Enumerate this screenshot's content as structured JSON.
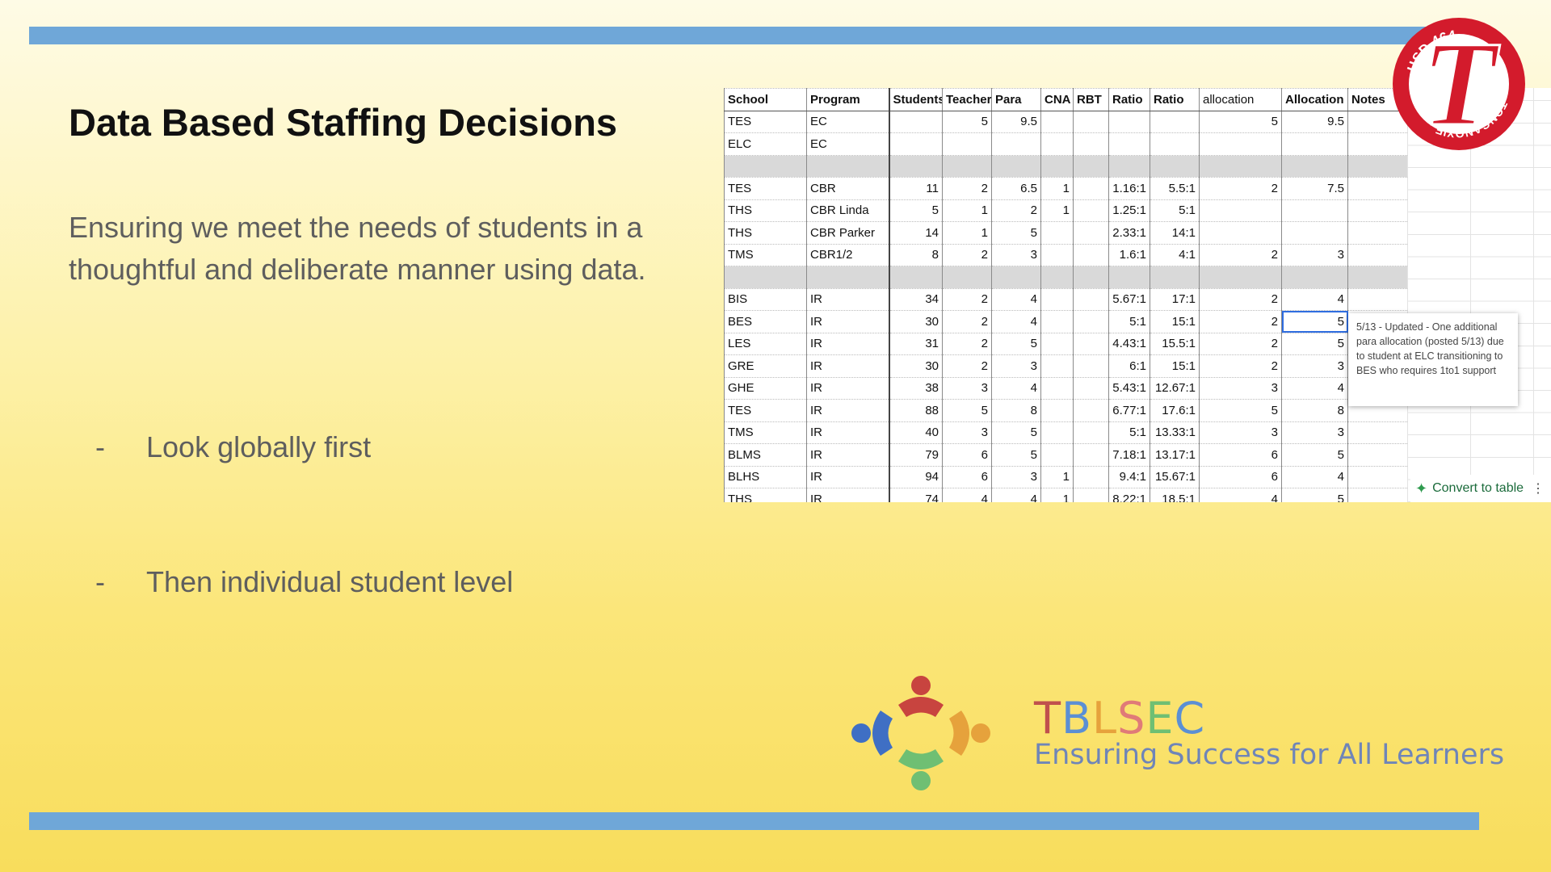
{
  "slide": {
    "title": "Data Based Staffing Decisions",
    "subtitle": "Ensuring we meet the needs of students in a thoughtful and deliberate manner using data.",
    "bullets": [
      {
        "dash": "-",
        "text": "Look globally first"
      },
      {
        "dash": "-",
        "text": "Then individual student level"
      }
    ]
  },
  "sheet": {
    "headers": [
      "School",
      "Program",
      "Students",
      "Teacher",
      "Para",
      "CNA",
      "RBT",
      "Ratio",
      "Ratio",
      "allocation",
      "Allocation",
      "Notes"
    ],
    "rows": [
      {
        "type": "data",
        "cells": [
          "TES",
          "EC",
          "",
          "5",
          "9.5",
          "",
          "",
          "",
          "",
          "5",
          "9.5",
          ""
        ]
      },
      {
        "type": "data",
        "cells": [
          "ELC",
          "EC",
          "",
          "",
          "",
          "",
          "",
          "",
          "",
          "",
          "",
          ""
        ]
      },
      {
        "type": "sep"
      },
      {
        "type": "data",
        "cells": [
          "TES",
          "CBR",
          "11",
          "2",
          "6.5",
          "1",
          "",
          "1.16:1",
          "5.5:1",
          "2",
          "7.5",
          ""
        ]
      },
      {
        "type": "data",
        "cells": [
          "THS",
          "CBR Linda",
          "5",
          "1",
          "2",
          "1",
          "",
          "1.25:1",
          "5:1",
          "",
          "",
          ""
        ]
      },
      {
        "type": "data",
        "cells": [
          "THS",
          "CBR Parker",
          "14",
          "1",
          "5",
          "",
          "",
          "2.33:1",
          "14:1",
          "",
          "",
          ""
        ]
      },
      {
        "type": "data",
        "cells": [
          "TMS",
          "CBR1/2",
          "8",
          "2",
          "3",
          "",
          "",
          "1.6:1",
          "4:1",
          "2",
          "3",
          ""
        ]
      },
      {
        "type": "sep"
      },
      {
        "type": "data",
        "cells": [
          "BIS",
          "IR",
          "34",
          "2",
          "4",
          "",
          "",
          "5.67:1",
          "17:1",
          "2",
          "4",
          ""
        ]
      },
      {
        "type": "data",
        "cells": [
          "BES",
          "IR",
          "30",
          "2",
          "4",
          "",
          "",
          "5:1",
          "15:1",
          "2",
          "5",
          ""
        ]
      },
      {
        "type": "data",
        "cells": [
          "LES",
          "IR",
          "31",
          "2",
          "5",
          "",
          "",
          "4.43:1",
          "15.5:1",
          "2",
          "5",
          ""
        ]
      },
      {
        "type": "data",
        "cells": [
          "GRE",
          "IR",
          "30",
          "2",
          "3",
          "",
          "",
          "6:1",
          "15:1",
          "2",
          "3",
          ""
        ]
      },
      {
        "type": "data",
        "cells": [
          "GHE",
          "IR",
          "38",
          "3",
          "4",
          "",
          "",
          "5.43:1",
          "12.67:1",
          "3",
          "4",
          ""
        ]
      },
      {
        "type": "data",
        "cells": [
          "TES",
          "IR",
          "88",
          "5",
          "8",
          "",
          "",
          "6.77:1",
          "17.6:1",
          "5",
          "8",
          ""
        ]
      },
      {
        "type": "data",
        "cells": [
          "TMS",
          "IR",
          "40",
          "3",
          "5",
          "",
          "",
          "5:1",
          "13.33:1",
          "3",
          "3",
          ""
        ]
      },
      {
        "type": "data",
        "cells": [
          "BLMS",
          "IR",
          "79",
          "6",
          "5",
          "",
          "",
          "7.18:1",
          "13.17:1",
          "6",
          "5",
          ""
        ]
      },
      {
        "type": "data",
        "cells": [
          "BLHS",
          "IR",
          "94",
          "6",
          "3",
          "1",
          "",
          "9.4:1",
          "15.67:1",
          "6",
          "4",
          ""
        ]
      },
      {
        "type": "data",
        "cells": [
          "THS",
          "IR",
          "74",
          "4",
          "4",
          "1",
          "",
          "8.22:1",
          "18.5:1",
          "4",
          "5",
          ""
        ]
      }
    ],
    "comment": "5/13 - Updated - One additional para allocation (posted 5/13) due to student at ELC transitioning to BES who requires 1to1 support",
    "convert_label": "Convert to table",
    "convert_menu": "⋮"
  },
  "seal": {
    "top_text": "USD 464",
    "bottom_text": "TONGANOXIE",
    "letter": "T"
  },
  "logo": {
    "brand": [
      "T",
      "B",
      "L",
      "S",
      "E",
      "C"
    ],
    "brand_colors": [
      "#c0504d",
      "#5b8fd4",
      "#e6a23c",
      "#e07a78",
      "#6fbf73",
      "#5b8fd4"
    ],
    "tagline": "Ensuring Success for All Learners"
  },
  "colors": {
    "accent_bar": "#6fa7d8",
    "seal_red": "#d31b2c",
    "selection": "#2f6de0"
  }
}
